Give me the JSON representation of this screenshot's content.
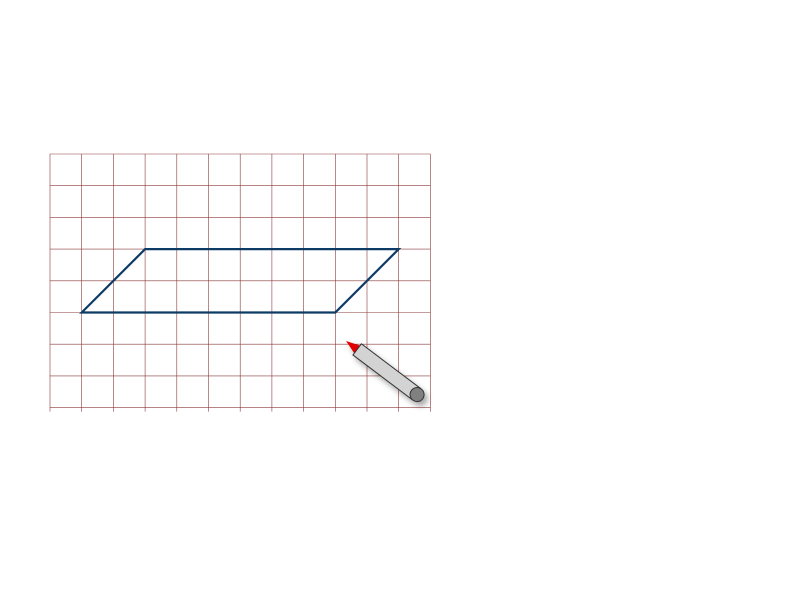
{
  "grid": {
    "columns": 12,
    "rows": 8,
    "line_color": "#8b3a3a"
  },
  "parallelogram": {
    "vertices_grid_units": [
      [
        1,
        5
      ],
      [
        3,
        3
      ],
      [
        11,
        3
      ],
      [
        9,
        5
      ]
    ],
    "stroke_color": "#0d3b66"
  },
  "pencil": {
    "icon": "pencil-icon",
    "tip_color": "#e00000",
    "body_color": "#d3d3d3",
    "eraser_color": "#808080"
  }
}
